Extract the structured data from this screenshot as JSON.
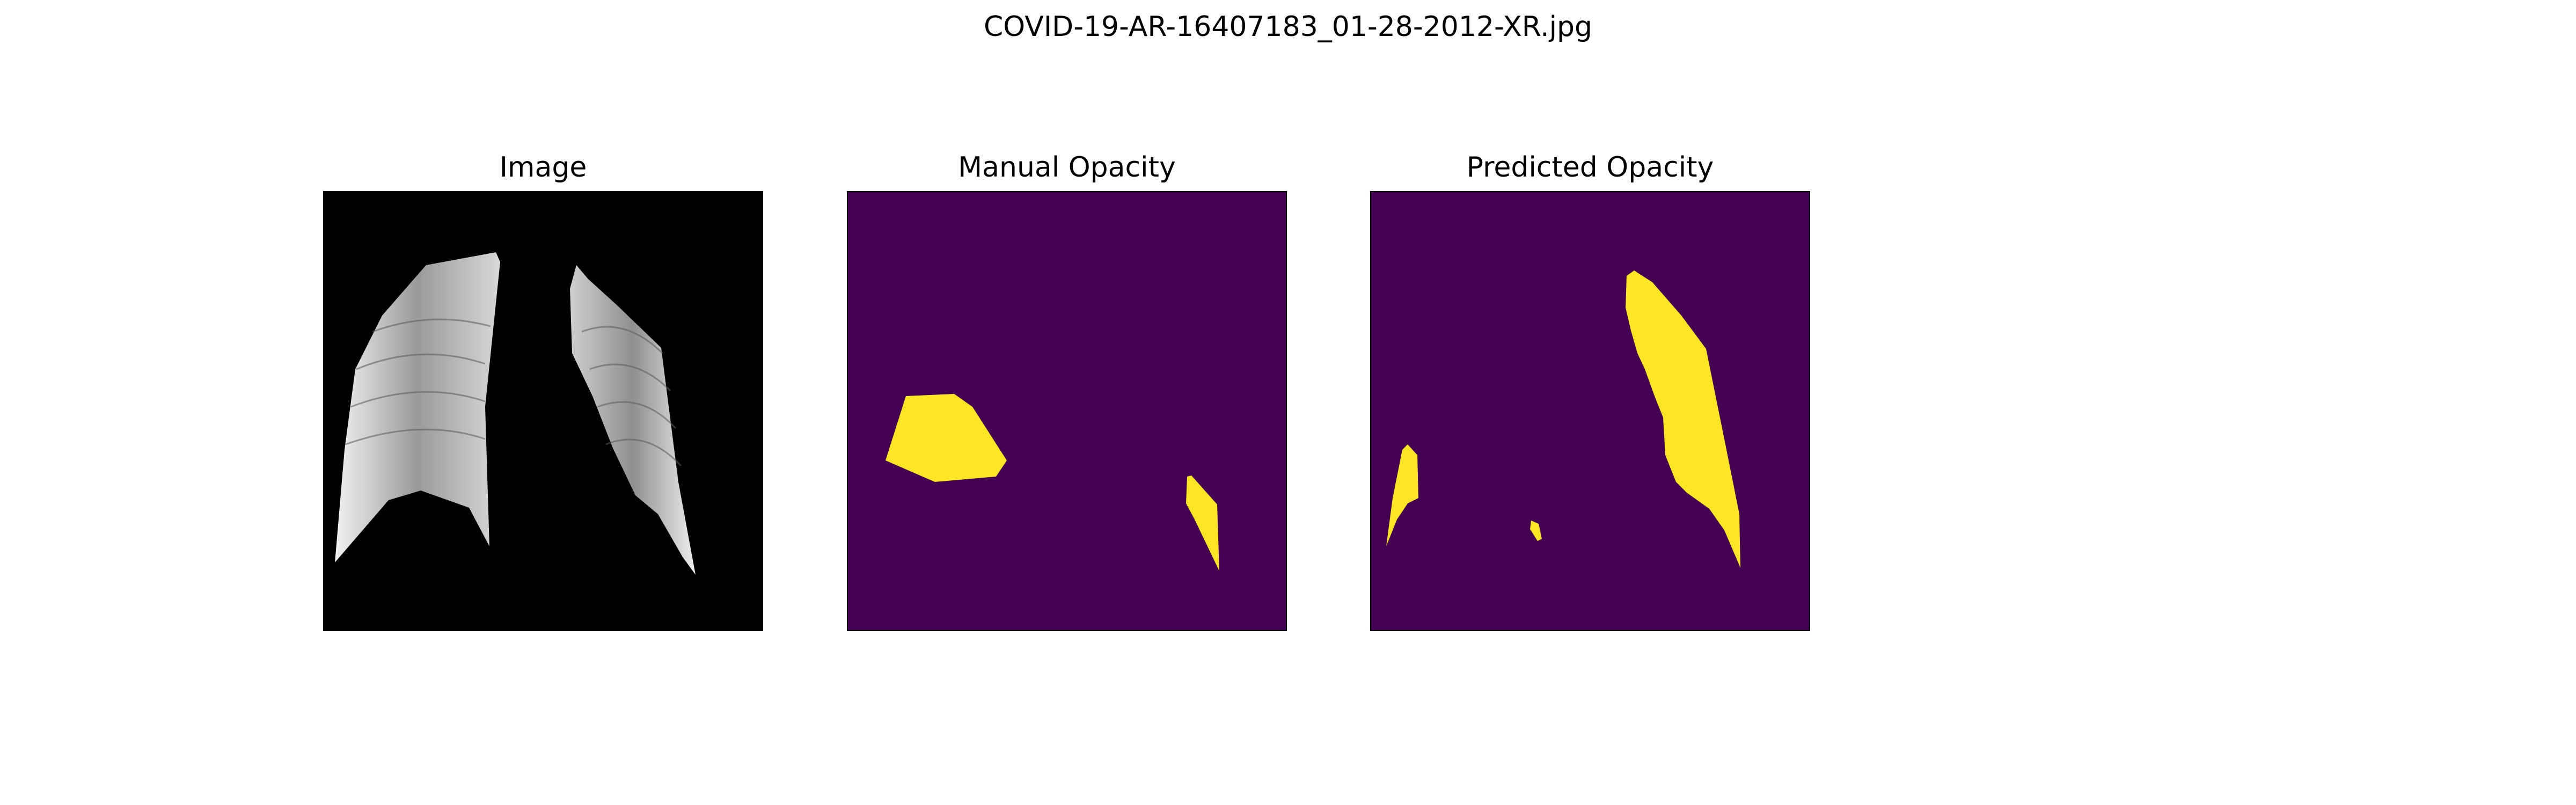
{
  "figure": {
    "title": "COVID-19-AR-16407183_01-28-2012-XR.jpg"
  },
  "panels": [
    {
      "title": "Image"
    },
    {
      "title": "Manual Opacity"
    },
    {
      "title": "Predicted Opacity"
    }
  ],
  "colors": {
    "image_background": "#000000",
    "mask_background": "#440154",
    "mask_foreground": "#fde725",
    "lung_tissue": "#d9d9d9"
  }
}
